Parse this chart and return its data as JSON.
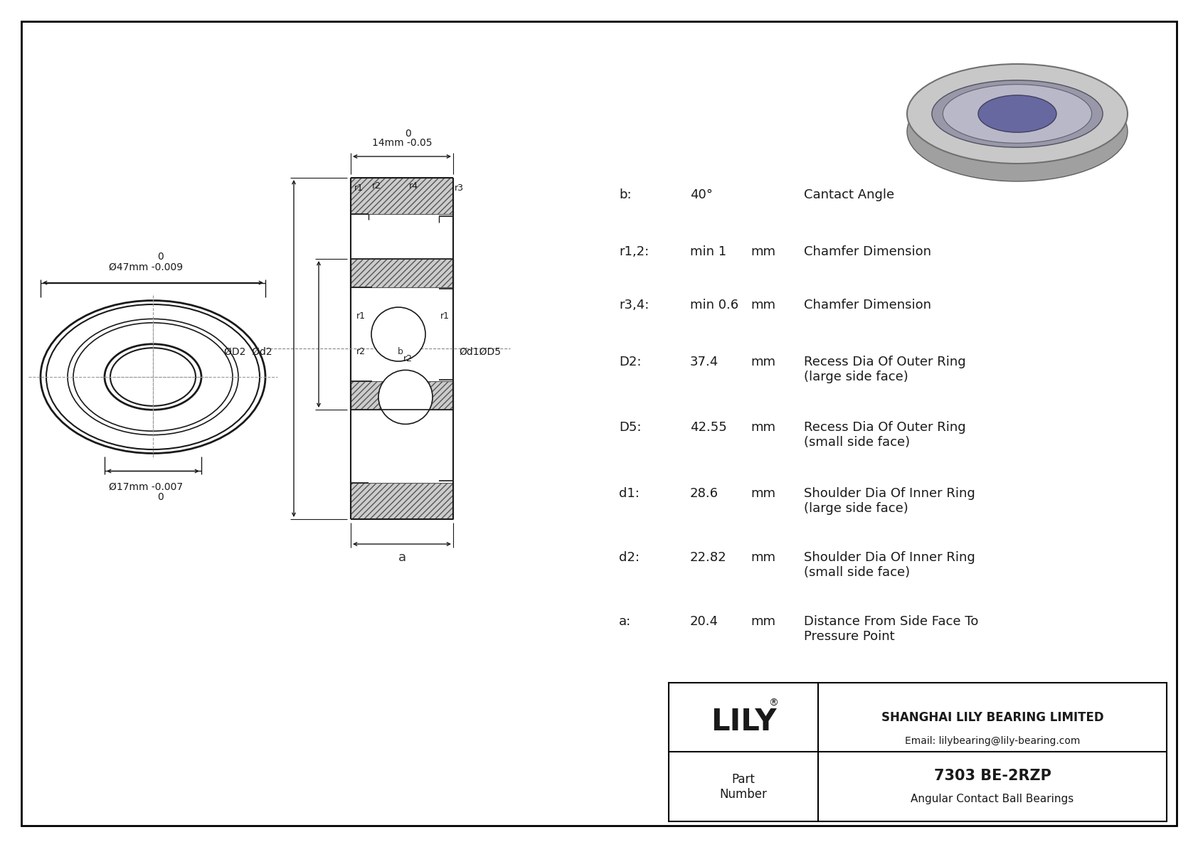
{
  "title": "7303 BE-2RZP",
  "subtitle": "Angular Contact Ball Bearings",
  "company": "SHANGHAI LILY BEARING LIMITED",
  "email": "Email: lilybearing@lily-bearing.com",
  "part_label": "Part\nNumber",
  "logo": "LILY",
  "outer_dim_label": "Ø47mm -0.009",
  "outer_dim_top": "0",
  "inner_dim_label": "Ø17mm -0.007",
  "inner_dim_top": "0",
  "width_dim_label": "14mm -0.05",
  "width_dim_top": "0",
  "params": [
    {
      "key": "b:",
      "value": "40°",
      "unit": "",
      "desc": "Cantact Angle"
    },
    {
      "key": "r1,2:",
      "value": "min 1",
      "unit": "mm",
      "desc": "Chamfer Dimension"
    },
    {
      "key": "r3,4:",
      "value": "min 0.6",
      "unit": "mm",
      "desc": "Chamfer Dimension"
    },
    {
      "key": "D2:",
      "value": "37.4",
      "unit": "mm",
      "desc": "Recess Dia Of Outer Ring\n(large side face)"
    },
    {
      "key": "D5:",
      "value": "42.55",
      "unit": "mm",
      "desc": "Recess Dia Of Outer Ring\n(small side face)"
    },
    {
      "key": "d1:",
      "value": "28.6",
      "unit": "mm",
      "desc": "Shoulder Dia Of Inner Ring\n(large side face)"
    },
    {
      "key": "d2:",
      "value": "22.82",
      "unit": "mm",
      "desc": "Shoulder Dia Of Inner Ring\n(small side face)"
    },
    {
      "key": "a:",
      "value": "20.4",
      "unit": "mm",
      "desc": "Distance From Side Face To\nPressure Point"
    }
  ]
}
